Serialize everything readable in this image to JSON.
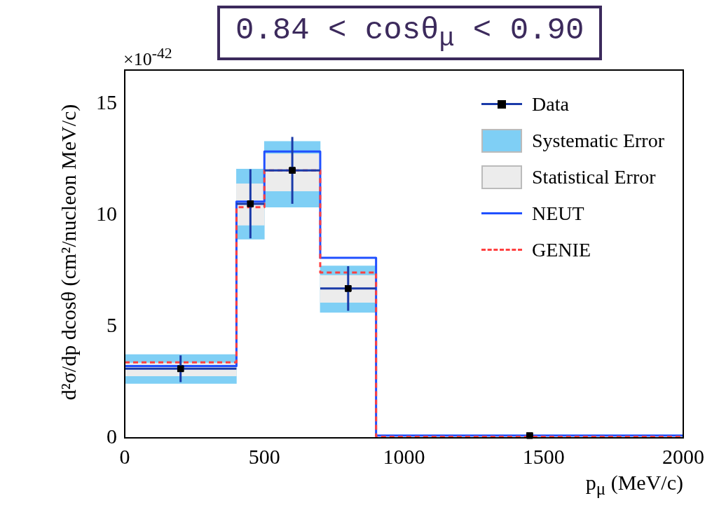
{
  "chart_data": {
    "type": "step",
    "title": "0.84 < cosθ$_{μ}$ < 0.90",
    "xlabel": "p$_{μ}$ (MeV/c)",
    "ylabel": "d²σ/dp dcosθ (cm²/nucleon MeV/c)",
    "annotations": [
      "×10$^{-42}$"
    ],
    "xlim": [
      0,
      2000
    ],
    "xticks": [
      0,
      500,
      1000,
      1500,
      2000
    ],
    "ylim": [
      0,
      16.5
    ],
    "yticks": [
      0,
      5,
      10,
      15
    ],
    "legend": "top right",
    "series": [
      {
        "name": "Data",
        "type": "scatter",
        "color": "#000000",
        "marker": "square",
        "x": [
          200,
          450,
          600,
          800,
          1450
        ],
        "values": [
          3.1,
          10.5,
          12.0,
          6.7,
          0.1
        ],
        "errors": [
          0.6,
          1.55,
          1.5,
          1.0,
          null
        ],
        "xerrors": [
          200,
          50,
          100,
          100,
          null
        ]
      },
      {
        "name": "Systematic Error",
        "type": "bar",
        "color": "#7fcff5",
        "x": [
          200,
          450,
          600,
          800
        ],
        "base": [
          2.44,
          8.91,
          10.35,
          5.63
        ],
        "values": [
          1.3,
          3.15,
          2.95,
          2.08
        ]
      },
      {
        "name": "Statistical Error",
        "type": "bar",
        "color": "#ececec",
        "x": [
          200,
          450,
          600,
          800
        ],
        "base": [
          2.78,
          9.54,
          11.07,
          6.08
        ],
        "values": [
          0.58,
          1.86,
          1.67,
          1.21
        ]
      },
      {
        "name": "NEUT",
        "color": "#2050ff",
        "line_style": "solid",
        "x": [
          0,
          400,
          500,
          700,
          900,
          2000
        ],
        "values": [
          3.22,
          10.6,
          12.85,
          8.08,
          0.1,
          0.1
        ]
      },
      {
        "name": "GENIE",
        "color": "#ff4040",
        "line_style": "dashed",
        "x": [
          0,
          400,
          500,
          700,
          900,
          2000
        ],
        "values": [
          3.39,
          10.35,
          12.0,
          7.42,
          0.05,
          0.05
        ]
      }
    ]
  }
}
